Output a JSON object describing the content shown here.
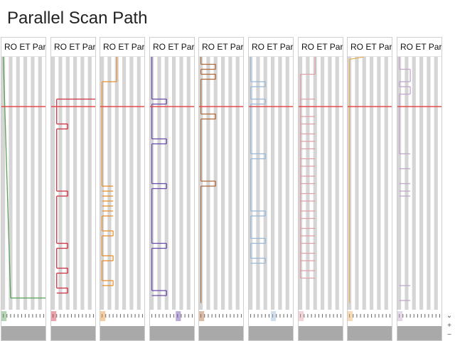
{
  "title": "Parallel Scan Path",
  "header_text": "RO ET Pari",
  "scrollbar": {
    "arrow_down": "⌄",
    "zoom_in": "+",
    "zoom_out": "−"
  },
  "colors": {
    "red_line": "#e84a4a",
    "column_gray": "#d5d5d5",
    "footer_gray": "#a9a9a9",
    "tick_text": "#666666"
  },
  "panels": [
    {
      "id": "p1",
      "header": "RO ET Pari",
      "color": "#5aa05a",
      "highlight": 0,
      "segments": [
        [
          0,
          0,
          2,
          0.97
        ],
        [
          2,
          0.97,
          12,
          0.97
        ],
        [
          12,
          0.97,
          12,
          0.99
        ]
      ]
    },
    {
      "id": "p2",
      "header": "RO ET Pari",
      "color": "#cc3344",
      "highlight": 0,
      "segments": [
        [
          12,
          0,
          12,
          0.17
        ],
        [
          12,
          0.17,
          1,
          0.17
        ],
        [
          1,
          0.17,
          1,
          0.27
        ],
        [
          1,
          0.27,
          4,
          0.27
        ],
        [
          4,
          0.27,
          4,
          0.29
        ],
        [
          4,
          0.29,
          1,
          0.29
        ],
        [
          1,
          0.29,
          1,
          0.54
        ],
        [
          1,
          0.54,
          4,
          0.54
        ],
        [
          4,
          0.54,
          4,
          0.56
        ],
        [
          4,
          0.56,
          1,
          0.56
        ],
        [
          1,
          0.56,
          1,
          0.75
        ],
        [
          1,
          0.75,
          4,
          0.75
        ],
        [
          4,
          0.75,
          4,
          0.77
        ],
        [
          4,
          0.77,
          1,
          0.77
        ],
        [
          1,
          0.77,
          1,
          0.85
        ],
        [
          1,
          0.85,
          4,
          0.85
        ],
        [
          4,
          0.85,
          4,
          0.87
        ],
        [
          4,
          0.87,
          1,
          0.87
        ],
        [
          1,
          0.87,
          1,
          0.93
        ],
        [
          1,
          0.93,
          4,
          0.93
        ],
        [
          4,
          0.93,
          4,
          0.95
        ],
        [
          4,
          0.95,
          1,
          0.95
        ]
      ]
    },
    {
      "id": "p3",
      "header": "RO ET Pari",
      "color": "#e89030",
      "highlight": 0,
      "segments": [
        [
          4,
          0,
          4,
          0.1
        ],
        [
          4,
          0.1,
          0,
          0.1
        ],
        [
          0,
          0.1,
          0,
          0.52
        ],
        [
          0,
          0.52,
          3,
          0.52
        ],
        [
          0,
          0.54,
          3,
          0.54
        ],
        [
          0,
          0.56,
          3,
          0.56
        ],
        [
          0,
          0.58,
          3,
          0.58
        ],
        [
          0,
          0.6,
          3,
          0.6
        ],
        [
          0,
          0.62,
          3,
          0.62
        ],
        [
          0,
          0.64,
          3,
          0.64
        ],
        [
          0,
          0.64,
          0,
          0.7
        ],
        [
          0,
          0.7,
          3,
          0.7
        ],
        [
          3,
          0.7,
          3,
          0.72
        ],
        [
          3,
          0.72,
          0,
          0.72
        ],
        [
          0,
          0.72,
          0,
          0.8
        ],
        [
          0,
          0.8,
          3,
          0.8
        ],
        [
          3,
          0.8,
          3,
          0.82
        ],
        [
          3,
          0.82,
          0,
          0.82
        ],
        [
          0,
          0.82,
          0,
          0.9
        ],
        [
          0,
          0.9,
          3,
          0.9
        ],
        [
          3,
          0.9,
          3,
          0.92
        ],
        [
          3,
          0.92,
          0,
          0.92
        ]
      ]
    },
    {
      "id": "p4",
      "header": "RO ET Pari",
      "color": "#6a4aa8",
      "highlight": 7,
      "segments": [
        [
          0,
          0,
          0,
          0.17
        ],
        [
          0,
          0.17,
          4,
          0.17
        ],
        [
          4,
          0.17,
          4,
          0.19
        ],
        [
          4,
          0.19,
          0,
          0.19
        ],
        [
          0,
          0.19,
          0,
          0.33
        ],
        [
          0,
          0.33,
          4,
          0.33
        ],
        [
          4,
          0.33,
          4,
          0.35
        ],
        [
          4,
          0.35,
          0,
          0.35
        ],
        [
          0,
          0.35,
          0,
          0.51
        ],
        [
          0,
          0.51,
          4,
          0.51
        ],
        [
          4,
          0.51,
          4,
          0.53
        ],
        [
          4,
          0.53,
          0,
          0.53
        ],
        [
          0,
          0.53,
          0,
          0.75
        ],
        [
          0,
          0.75,
          4,
          0.75
        ],
        [
          4,
          0.75,
          4,
          0.77
        ],
        [
          4,
          0.77,
          0,
          0.77
        ],
        [
          0,
          0.77,
          0,
          0.94
        ],
        [
          0,
          0.94,
          4,
          0.94
        ],
        [
          4,
          0.94,
          4,
          0.96
        ],
        [
          4,
          0.96,
          0,
          0.96
        ]
      ]
    },
    {
      "id": "p5",
      "header": "RO ET Pari",
      "color": "#b06a3a",
      "highlight": 0,
      "segments": [
        [
          0,
          0,
          0,
          0.03
        ],
        [
          0,
          0.03,
          4,
          0.03
        ],
        [
          4,
          0.03,
          4,
          0.05
        ],
        [
          4,
          0.05,
          0,
          0.05
        ],
        [
          0,
          0.05,
          0,
          0.07
        ],
        [
          0,
          0.07,
          4,
          0.07
        ],
        [
          4,
          0.07,
          4,
          0.09
        ],
        [
          4,
          0.09,
          0,
          0.09
        ],
        [
          0,
          0.09,
          0,
          0.23
        ],
        [
          0,
          0.23,
          4,
          0.23
        ],
        [
          4,
          0.23,
          4,
          0.25
        ],
        [
          4,
          0.25,
          0,
          0.25
        ],
        [
          0,
          0.25,
          0,
          0.5
        ],
        [
          0,
          0.5,
          4,
          0.5
        ],
        [
          4,
          0.5,
          4,
          0.52
        ],
        [
          4,
          0.52,
          0,
          0.52
        ],
        [
          0,
          0.52,
          0,
          0.99
        ]
      ]
    },
    {
      "id": "p6",
      "header": "RO ET Pari",
      "color": "#9ab8d8",
      "highlight": 6,
      "segments": [
        [
          0,
          0,
          0,
          0.1
        ],
        [
          0,
          0.1,
          4,
          0.1
        ],
        [
          4,
          0.1,
          4,
          0.12
        ],
        [
          4,
          0.12,
          0,
          0.12
        ],
        [
          0,
          0.12,
          0,
          0.17
        ],
        [
          0,
          0.17,
          4,
          0.17
        ],
        [
          4,
          0.17,
          4,
          0.19
        ],
        [
          4,
          0.19,
          0,
          0.19
        ],
        [
          0,
          0.19,
          0,
          0.39
        ],
        [
          0,
          0.39,
          4,
          0.39
        ],
        [
          4,
          0.39,
          4,
          0.41
        ],
        [
          4,
          0.41,
          0,
          0.41
        ],
        [
          0,
          0.41,
          0,
          0.62
        ],
        [
          0,
          0.62,
          4,
          0.62
        ],
        [
          4,
          0.62,
          4,
          0.64
        ],
        [
          4,
          0.64,
          0,
          0.64
        ],
        [
          0,
          0.64,
          0,
          0.73
        ],
        [
          0,
          0.73,
          4,
          0.73
        ],
        [
          4,
          0.73,
          4,
          0.75
        ],
        [
          4,
          0.75,
          0,
          0.75
        ],
        [
          0,
          0.75,
          0,
          0.81
        ],
        [
          0,
          0.81,
          4,
          0.81
        ],
        [
          4,
          0.81,
          4,
          0.83
        ],
        [
          4,
          0.83,
          0,
          0.83
        ]
      ]
    },
    {
      "id": "p7",
      "header": "RO ET Pari",
      "color": "#e0a0a8",
      "highlight": 0,
      "segments": [
        [
          4,
          0,
          4,
          0.07
        ],
        [
          4,
          0.07,
          0,
          0.07
        ],
        [
          0,
          0.07,
          0,
          0.89
        ],
        [
          0,
          0.17,
          4,
          0.17
        ],
        [
          0,
          0.2,
          4,
          0.2
        ],
        [
          0,
          0.24,
          4,
          0.24
        ],
        [
          0,
          0.27,
          4,
          0.27
        ],
        [
          0,
          0.31,
          4,
          0.31
        ],
        [
          0,
          0.34,
          4,
          0.34
        ],
        [
          0,
          0.37,
          4,
          0.37
        ],
        [
          0,
          0.41,
          4,
          0.41
        ],
        [
          0,
          0.44,
          4,
          0.44
        ],
        [
          0,
          0.48,
          4,
          0.48
        ],
        [
          0,
          0.51,
          4,
          0.51
        ],
        [
          0,
          0.55,
          4,
          0.55
        ],
        [
          0,
          0.58,
          4,
          0.58
        ],
        [
          0,
          0.62,
          4,
          0.62
        ],
        [
          0,
          0.65,
          4,
          0.65
        ],
        [
          0,
          0.69,
          4,
          0.69
        ],
        [
          0,
          0.72,
          4,
          0.72
        ],
        [
          0,
          0.75,
          4,
          0.75
        ],
        [
          0,
          0.79,
          4,
          0.79
        ],
        [
          0,
          0.82,
          4,
          0.82
        ],
        [
          0,
          0.86,
          4,
          0.86
        ],
        [
          0,
          0.89,
          4,
          0.89
        ]
      ]
    },
    {
      "id": "p8",
      "header": "RO ET Pari",
      "color": "#e8b060",
      "highlight": 0,
      "segments": [
        [
          4,
          0,
          0,
          0.01
        ],
        [
          0,
          0.01,
          0,
          0.99
        ]
      ]
    },
    {
      "id": "p9",
      "header": "RO ET Pari",
      "color": "#c0a8cc",
      "highlight": 0,
      "segments": [
        [
          0,
          0,
          0,
          0.05
        ],
        [
          0,
          0.05,
          3,
          0.05
        ],
        [
          3,
          0.05,
          3,
          0.1
        ],
        [
          3,
          0.1,
          0,
          0.1
        ],
        [
          0,
          0.1,
          0,
          0.12
        ],
        [
          0,
          0.12,
          3,
          0.12
        ],
        [
          3,
          0.12,
          3,
          0.15
        ],
        [
          3,
          0.15,
          0,
          0.15
        ],
        [
          0,
          0.15,
          0,
          0.39
        ],
        [
          0,
          0.39,
          3,
          0.39
        ],
        [
          0,
          0.45,
          3,
          0.45
        ],
        [
          0,
          0.51,
          3,
          0.51
        ],
        [
          0,
          0.54,
          3,
          0.54
        ],
        [
          0,
          0.56,
          3,
          0.56
        ],
        [
          0,
          0.92,
          3,
          0.92
        ],
        [
          0,
          0.98,
          3,
          0.98
        ]
      ]
    }
  ]
}
